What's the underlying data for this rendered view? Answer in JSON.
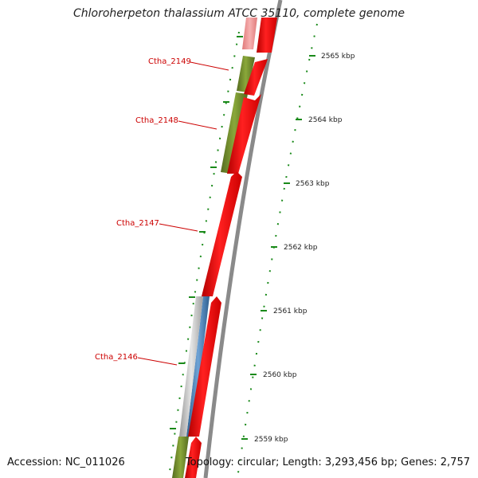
{
  "title": "Chloroherpeton thalassium ATCC 35110, complete genome",
  "footer": {
    "accession": "Accession: NC_011026",
    "summary": "Topology: circular; Length: 3,293,456 bp; Genes: 2,757"
  },
  "ruler": {
    "ticks": [
      "2565 kbp",
      "2564 kbp",
      "2563 kbp",
      "2562 kbp",
      "2561 kbp",
      "2560 kbp",
      "2559 kbp"
    ]
  },
  "genes": [
    {
      "label": "Ctha_2149",
      "color": "#cc0000"
    },
    {
      "label": "Ctha_2148",
      "color": "#cc0000"
    },
    {
      "label": "Ctha_2147",
      "color": "#cc0000"
    },
    {
      "label": "Ctha_2146",
      "color": "#cc0000"
    }
  ],
  "colors": {
    "cds_forward": "#ff0000",
    "cds_faded": "#f0868a",
    "gc_positive": "#6b8e23",
    "gc_alt": "#4a7fb5",
    "backbone": "#888888",
    "tick": "#1a8a1a"
  }
}
